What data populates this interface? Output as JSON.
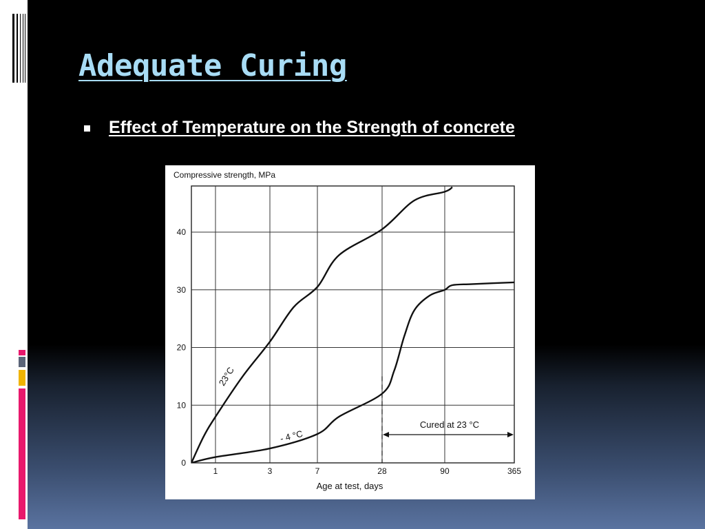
{
  "slide": {
    "title": "Adequate Curing",
    "bullet": "Effect of Temperature on the Strength of concrete"
  },
  "colors": {
    "title": "#a8dcf5",
    "accent_red": "#e8186c",
    "accent_yellow": "#f0b400",
    "accent_slate": "#5b6478"
  },
  "chart_data": {
    "type": "line",
    "ylabel": "Compressive strength, MPa",
    "xlabel": "Age at test, days",
    "x_ticks": [
      "1",
      "3",
      "7",
      "28",
      "90",
      "365"
    ],
    "y_ticks": [
      "0",
      "10",
      "20",
      "30",
      "40"
    ],
    "ylim": [
      0,
      48
    ],
    "grid": true,
    "series": [
      {
        "name": "23 °C",
        "label": "23°C",
        "x": [
          0,
          0.5,
          1,
          2,
          3,
          5,
          7,
          14,
          28,
          60,
          90,
          120
        ],
        "y": [
          0,
          4.5,
          8,
          15,
          21,
          27,
          30.5,
          36,
          40.5,
          45.5,
          47,
          47.8
        ]
      },
      {
        "name": "-4 °C",
        "label": "- 4 °C",
        "x": [
          0,
          1,
          3,
          7,
          14,
          28,
          40,
          50,
          60,
          75,
          90,
          120,
          200,
          365
        ],
        "y": [
          0,
          1,
          2.5,
          5,
          8,
          12,
          16,
          22,
          26.5,
          29,
          30,
          30.8,
          31,
          31.3
        ]
      }
    ],
    "annotations": [
      {
        "text": "Cured at 23 °C"
      }
    ]
  }
}
